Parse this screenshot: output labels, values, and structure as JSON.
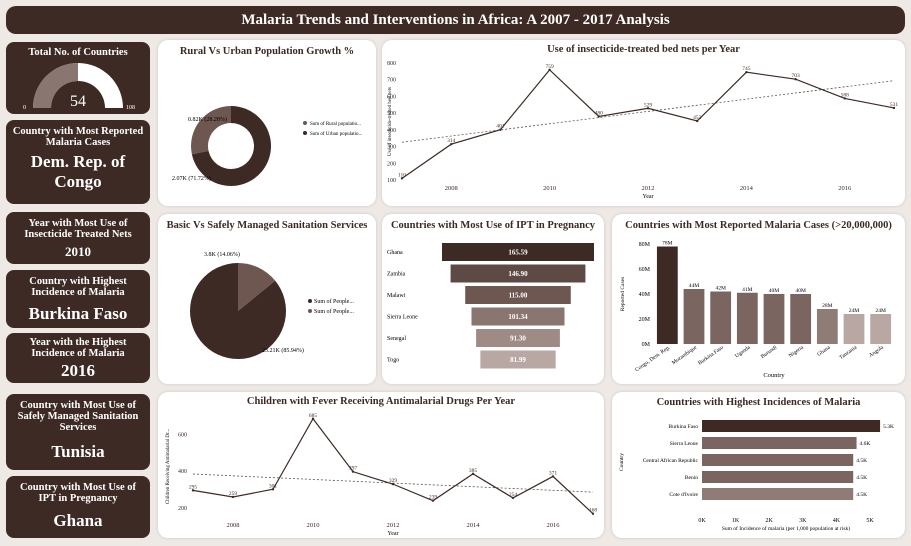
{
  "header": {
    "title": "Malaria Trends and Interventions in Africa: A 2007 - 2017 Analysis"
  },
  "kpis": {
    "total_countries": {
      "label": "Total No. of Countries",
      "value": "54",
      "min": "0",
      "max": "108"
    },
    "most_reported": {
      "label": "Country with Most Reported Malaria Cases",
      "value": "Dem. Rep. of Congo"
    },
    "year_itn": {
      "label": "Year with Most Use of Insecticide Treated Nets",
      "value": "2010"
    },
    "highest_incidence_country": {
      "label": "Country with Highest Incidence of Malaria",
      "value": "Burkina Faso"
    },
    "highest_incidence_year": {
      "label": "Year with the Highest Incidence of Malaria",
      "value": "2016"
    },
    "sanitation_country": {
      "label": "Country with Most Use of Safely Managed Sanitation Services",
      "value": "Tunisia"
    },
    "ipt_country": {
      "label": "Country with Most Use of IPT in Pregnancy",
      "value": "Ghana"
    }
  },
  "colors": {
    "dark": "#3d2a24",
    "mid": "#6e5750",
    "light": "#b8a7a2",
    "bg": "#efe9e6"
  },
  "chart_data": [
    {
      "id": "rural_urban",
      "type": "pie",
      "title": "Rural Vs Urban Population Growth %",
      "labels": [
        "Sum of Rural populatio...",
        "Sum of Urban populatio..."
      ],
      "values": [
        0.82,
        2.07
      ],
      "data_labels": [
        "0.82K (28.28%)",
        "2.07K (71.72%)"
      ],
      "legend_position": "right"
    },
    {
      "id": "itn",
      "type": "line",
      "title": "Use of insecticide-treated bed nets per Year",
      "xlabel": "Year",
      "ylabel": "Use of insecticide-treated bed nets",
      "x": [
        2007,
        2008,
        2009,
        2010,
        2011,
        2012,
        2013,
        2014,
        2015,
        2016,
        2017
      ],
      "values": [
        110,
        314,
        401,
        759,
        480,
        529,
        453,
        745,
        703,
        588,
        531
      ],
      "xticks": [
        "2008",
        "2010",
        "2012",
        "2014",
        "2016"
      ],
      "yticks": [
        "100",
        "200",
        "300",
        "400",
        "500",
        "600",
        "700",
        "800"
      ],
      "ylim": [
        100,
        800
      ],
      "trendline": true
    },
    {
      "id": "sanitation",
      "type": "pie",
      "title": "Basic Vs Safely Managed Sanitation Services",
      "labels": [
        "Sum of People...",
        "Sum of People..."
      ],
      "values": [
        23.21,
        3.8
      ],
      "data_labels": [
        "23.21K (85.94%)",
        "3.8K (14.06%)"
      ],
      "legend_position": "right"
    },
    {
      "id": "ipt",
      "type": "bar",
      "title": "Countries with Most Use of IPT in Pregnancy",
      "categories": [
        "Ghana",
        "Zambia",
        "Malawi",
        "Sierra Leone",
        "Senegal",
        "Togo"
      ],
      "values": [
        165.59,
        146.9,
        115.0,
        101.34,
        91.3,
        81.99
      ],
      "data_labels": [
        "165.59",
        "146.90",
        "115.00",
        "101.34",
        "91.30",
        "81.99"
      ]
    },
    {
      "id": "reported_cases",
      "type": "bar",
      "title": "Countries with Most Reported Malaria Cases (>20,000,000)",
      "xlabel": "Country",
      "ylabel": "Reported Cases",
      "categories": [
        "Congo, Dem. Rep.",
        "Mozambique",
        "Burkina Faso",
        "Uganda",
        "Burundi",
        "Nigeria",
        "Ghana",
        "Tanzania",
        "Angola"
      ],
      "values": [
        78,
        44,
        42,
        41,
        40,
        40,
        28,
        24,
        24
      ],
      "data_labels": [
        "78M",
        "44M",
        "42M",
        "41M",
        "40M",
        "40M",
        "28M",
        "24M",
        "24M"
      ],
      "yticks": [
        "0M",
        "20M",
        "40M",
        "60M",
        "80M"
      ],
      "ylim": [
        0,
        80
      ]
    },
    {
      "id": "antimalarial",
      "type": "line",
      "title": "Children with Fever Receiving Antimalarial Drugs Per Year",
      "xlabel": "Year",
      "ylabel": "Children Receiving Antimalarial Dr...",
      "x": [
        2007,
        2008,
        2009,
        2010,
        2011,
        2012,
        2013,
        2014,
        2015,
        2016,
        2017
      ],
      "values": [
        295,
        259,
        301,
        685,
        397,
        329,
        239,
        385,
        254,
        371,
        168
      ],
      "xticks": [
        "2008",
        "2010",
        "2012",
        "2014",
        "2016"
      ],
      "yticks": [
        "200",
        "400",
        "600"
      ],
      "ylim": [
        150,
        700
      ],
      "trendline": true
    },
    {
      "id": "incidence",
      "type": "bar",
      "title": "Countries with Highest Incidences of Malaria",
      "xlabel": "Sum of Incidence of malaria (per 1,000 population at risk)",
      "ylabel": "Country",
      "categories": [
        "Burkina Faso",
        "Sierra Leone",
        "Central African Republic",
        "Benin",
        "Cote d'Ivoire"
      ],
      "values": [
        5.3,
        4.6,
        4.5,
        4.5,
        4.5
      ],
      "data_labels": [
        "5.3K",
        "4.6K",
        "4.5K",
        "4.5K",
        "4.5K"
      ],
      "xticks": [
        "0K",
        "1K",
        "2K",
        "3K",
        "4K",
        "5K"
      ],
      "xlim": [
        0,
        5
      ]
    }
  ]
}
